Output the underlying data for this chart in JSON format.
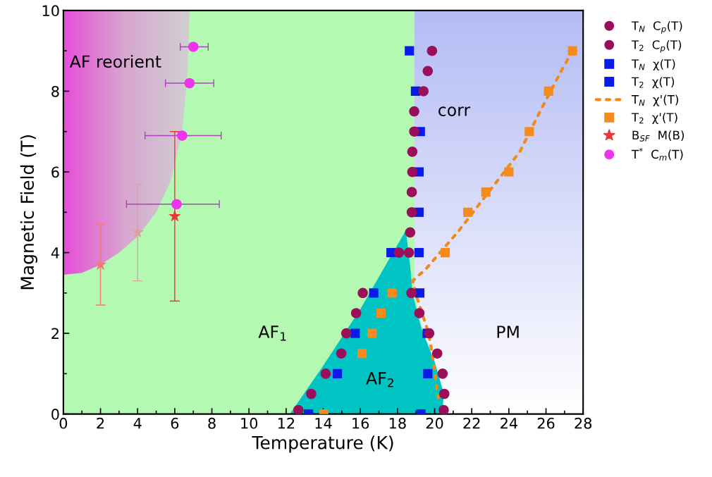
{
  "chart_data": {
    "type": "scatter",
    "xlabel": "Temperature (K)",
    "ylabel": "Magnetic Field (T)",
    "xlim": [
      0,
      28
    ],
    "ylim": [
      0,
      10
    ],
    "xticks": [
      0,
      {
        "value": 1,
        "label": null
      },
      2,
      {
        "value": 3,
        "label": null
      },
      4,
      {
        "value": 5,
        "label": null
      },
      6,
      {
        "value": 7,
        "label": null
      },
      8,
      {
        "value": 9,
        "label": null
      },
      10,
      {
        "value": 11,
        "label": null
      },
      12,
      {
        "value": 13,
        "label": null
      },
      14,
      {
        "value": 15,
        "label": null
      },
      16,
      {
        "value": 17,
        "label": null
      },
      18,
      {
        "value": 19,
        "label": null
      },
      20,
      {
        "value": 21,
        "label": null
      },
      22,
      {
        "value": 23,
        "label": null
      },
      24,
      {
        "value": 25,
        "label": null
      },
      26,
      {
        "value": 27,
        "label": null
      },
      28
    ],
    "yticks": [
      0,
      {
        "value": 1,
        "label": null
      },
      2,
      {
        "value": 3,
        "label": null
      },
      4,
      {
        "value": 5,
        "label": null
      },
      6,
      {
        "value": 7,
        "label": null
      },
      8,
      {
        "value": 9,
        "label": null
      },
      10
    ],
    "grid": false,
    "legend": "right",
    "series": [
      {
        "name": "T$_{N}$  C$_{p}$(T)",
        "marker": "circle",
        "color": "#9b0f5a",
        "x": [
          19.86,
          19.63,
          19.4,
          18.9,
          18.9,
          18.8,
          18.8,
          18.77,
          18.77,
          18.68,
          18.62,
          18.75,
          19.18,
          19.71,
          20.14,
          20.43,
          20.52,
          20.49
        ],
        "values": [
          9,
          8.5,
          8,
          7.5,
          7,
          6.5,
          6,
          5.5,
          5,
          4.5,
          4,
          3,
          2.5,
          2,
          1.5,
          1,
          0.5,
          0.1
        ]
      },
      {
        "name": "T$_{2}$  C$_{p}$(T)",
        "marker": "circle",
        "color": "#9b0f5a",
        "x": [
          18.08,
          16.13,
          15.77,
          15.24,
          14.97,
          14.13,
          13.35,
          12.66
        ],
        "values": [
          4,
          3,
          2.5,
          2,
          1.5,
          1,
          0.5,
          0.1
        ]
      },
      {
        "name": "T$_{N}$  χ(T)",
        "marker": "square",
        "color": "#0a1be6",
        "x": [
          18.64,
          18.97,
          19.23,
          19.16,
          19.16,
          19.16,
          19.2,
          19.6,
          19.63,
          19.26
        ],
        "values": [
          9,
          8,
          7,
          6,
          5,
          4,
          3,
          2,
          1,
          0
        ]
      },
      {
        "name": "T$_{2}$  χ(T)",
        "marker": "square",
        "color": "#0a1be6",
        "x": [
          17.65,
          16.72,
          15.72,
          14.76,
          13.21
        ],
        "values": [
          4,
          3,
          2,
          1,
          0
        ]
      },
      {
        "name": "T$_{N}$  χ'(T)",
        "type": "line",
        "line_style": "dashed",
        "marker": "none",
        "color": "#f08a1a",
        "x": [
          27.43,
          26.82,
          25.68,
          24.59,
          21.23,
          19.54,
          18.82,
          19.04,
          19.68,
          19.97,
          20.18
        ],
        "values": [
          9,
          8.5,
          7.5,
          6.5,
          4.5,
          3.6,
          3.3,
          2.9,
          2,
          1.2,
          0.4
        ]
      },
      {
        "name": "T$_{2}$  χ'(T)",
        "marker": "square",
        "color": "#f58a1e",
        "x": [
          27.43,
          26.14,
          25.1,
          24.0,
          22.76,
          21.79,
          20.57,
          17.71,
          17.11,
          16.63,
          16.09,
          14.03
        ],
        "values": [
          9,
          8,
          7,
          6,
          5.5,
          5,
          4,
          3,
          2.5,
          2,
          1.5,
          0
        ]
      },
      {
        "name": "B$_{SF}$  M(B)",
        "marker": "star",
        "color": "#e8393a",
        "colors": [
          "#f07a7a",
          "#d9a3a0",
          "#e8393a"
        ],
        "x": [
          2,
          4,
          6
        ],
        "values": [
          3.7,
          4.5,
          4.9
        ],
        "errors": [
          [
            2.7,
            4.7
          ],
          [
            3.3,
            5.7
          ],
          [
            2.8,
            7.0
          ]
        ]
      },
      {
        "name": "T$^{*}$  C$_{m}$(T)",
        "marker": "circle",
        "color": "#ee33ee",
        "x": [
          7.0,
          6.8,
          6.4,
          6.1
        ],
        "values": [
          9.1,
          8.2,
          6.9,
          5.2
        ],
        "xerrors": [
          [
            6.3,
            7.8
          ],
          [
            5.5,
            8.1
          ],
          [
            4.4,
            8.5
          ],
          [
            3.4,
            8.4
          ]
        ]
      }
    ],
    "annotations": [
      "AF reorient",
      "corr",
      "AF$_{1}$",
      "AF$_{2}$",
      "PM"
    ]
  }
}
